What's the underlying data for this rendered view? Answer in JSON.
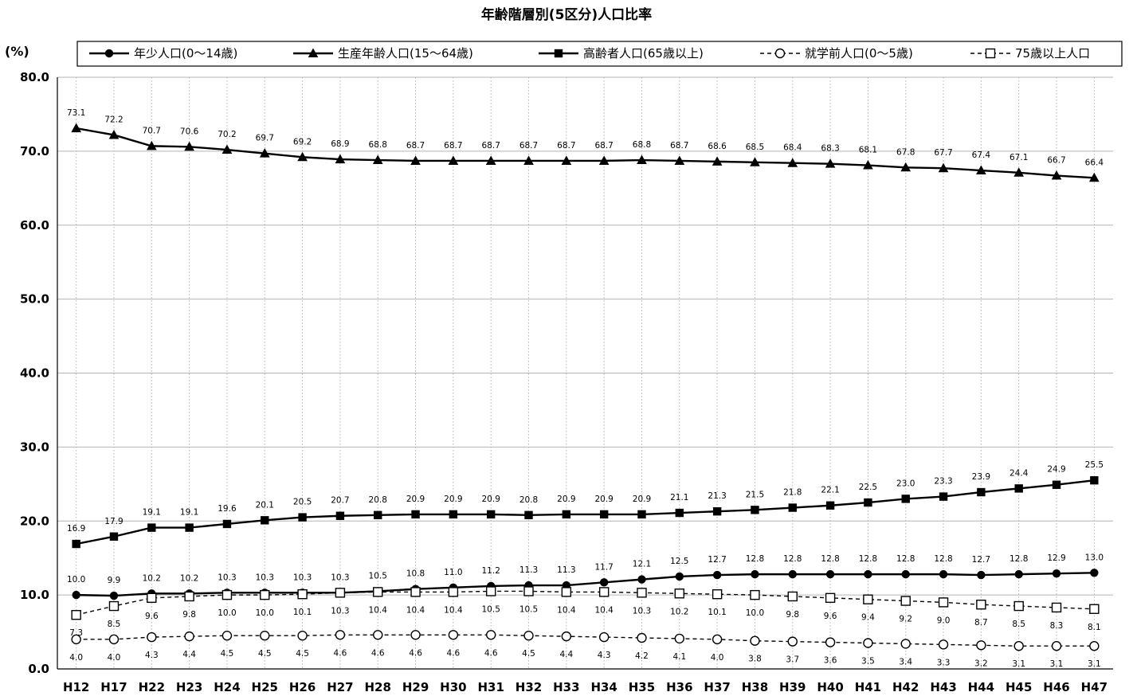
{
  "chart_data": {
    "type": "line",
    "title": "年齢階層別(5区分)人口比率",
    "ylabel": "(%)",
    "xlabel": "",
    "ylim": [
      0,
      80
    ],
    "ytick_step": 10,
    "grid": true,
    "legend_position": "top",
    "categories": [
      "H12",
      "H17",
      "H22",
      "H23",
      "H24",
      "H25",
      "H26",
      "H27",
      "H28",
      "H29",
      "H30",
      "H31",
      "H32",
      "H33",
      "H34",
      "H35",
      "H36",
      "H37",
      "H38",
      "H39",
      "H40",
      "H41",
      "H42",
      "H43",
      "H44",
      "H45",
      "H46",
      "H47"
    ],
    "series": [
      {
        "name": "年少人口(0～14歳)",
        "marker": "circle",
        "filled": true,
        "dashed": false,
        "label_pos": "above",
        "values": [
          10.0,
          9.9,
          10.2,
          10.2,
          10.3,
          10.3,
          10.3,
          10.3,
          10.5,
          10.8,
          11.0,
          11.2,
          11.3,
          11.3,
          11.7,
          12.1,
          12.5,
          12.7,
          12.8,
          12.8,
          12.8,
          12.8,
          12.8,
          12.8,
          12.7,
          12.8,
          12.9,
          13.0
        ]
      },
      {
        "name": "生産年齢人口(15～64歳)",
        "marker": "triangle",
        "filled": true,
        "dashed": false,
        "label_pos": "above",
        "values": [
          73.1,
          72.2,
          70.7,
          70.6,
          70.2,
          69.7,
          69.2,
          68.9,
          68.8,
          68.7,
          68.7,
          68.7,
          68.7,
          68.7,
          68.7,
          68.8,
          68.7,
          68.6,
          68.5,
          68.4,
          68.3,
          68.1,
          67.8,
          67.7,
          67.4,
          67.1,
          66.7,
          66.4
        ]
      },
      {
        "name": "高齢者人口(65歳以上)",
        "marker": "square",
        "filled": true,
        "dashed": false,
        "label_pos": "above",
        "values": [
          16.9,
          17.9,
          19.1,
          19.1,
          19.6,
          20.1,
          20.5,
          20.7,
          20.8,
          20.9,
          20.9,
          20.9,
          20.8,
          20.9,
          20.9,
          20.9,
          21.1,
          21.3,
          21.5,
          21.8,
          22.1,
          22.5,
          23.0,
          23.3,
          23.9,
          24.4,
          24.9,
          25.5
        ]
      },
      {
        "name": "就学前人口(0～5歳)",
        "marker": "circle",
        "filled": false,
        "dashed": true,
        "label_pos": "below",
        "values": [
          4.0,
          4.0,
          4.3,
          4.4,
          4.5,
          4.5,
          4.5,
          4.6,
          4.6,
          4.6,
          4.6,
          4.6,
          4.5,
          4.4,
          4.3,
          4.2,
          4.1,
          4.0,
          3.8,
          3.7,
          3.6,
          3.5,
          3.4,
          3.3,
          3.2,
          3.1,
          3.1,
          3.1
        ]
      },
      {
        "name": "75歳以上人口",
        "marker": "square",
        "filled": false,
        "dashed": true,
        "label_pos": "below",
        "values": [
          7.3,
          8.5,
          9.6,
          9.8,
          10.0,
          10.0,
          10.1,
          10.3,
          10.4,
          10.4,
          10.4,
          10.5,
          10.5,
          10.4,
          10.4,
          10.3,
          10.2,
          10.1,
          10.0,
          9.8,
          9.6,
          9.4,
          9.2,
          9.0,
          8.7,
          8.5,
          8.3,
          8.1
        ]
      }
    ]
  },
  "colors": {
    "line": "#000000",
    "grid": "#b4b4b4",
    "background": "#ffffff"
  }
}
